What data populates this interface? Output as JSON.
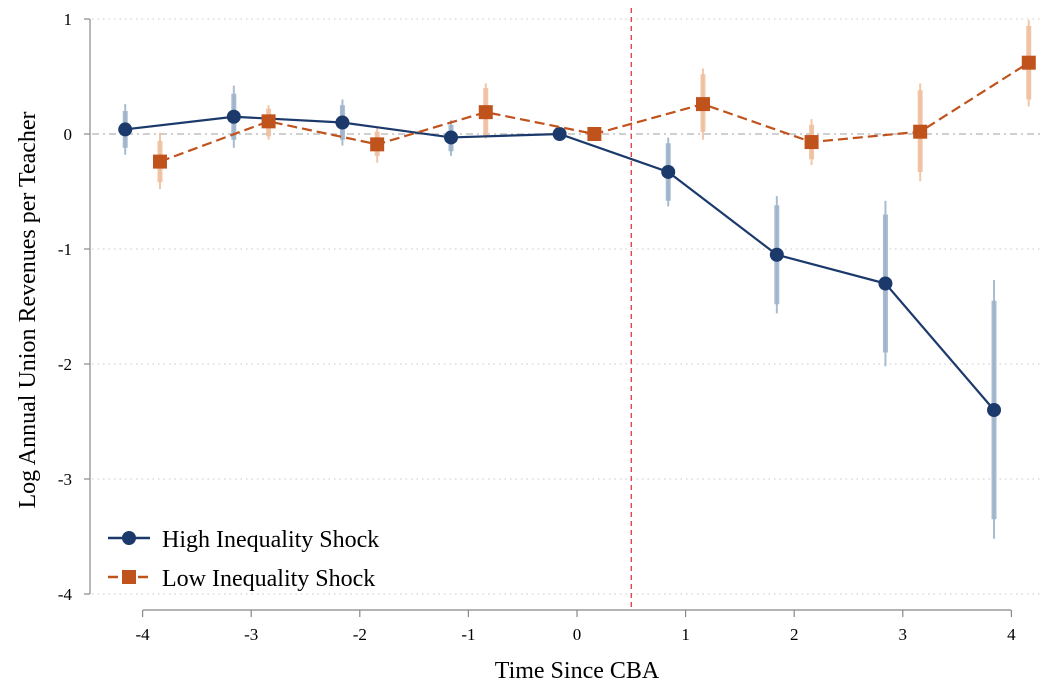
{
  "chart_data": {
    "type": "line",
    "xlabel": "Time Since CBA",
    "ylabel": "Log Annual Union Revenues per Teacher",
    "xlim": [
      -4.2,
      4.2
    ],
    "ylim": [
      -4,
      1
    ],
    "x_ticks": [
      -4,
      -3,
      -2,
      -1,
      0,
      1,
      2,
      3,
      4
    ],
    "y_ticks": [
      -4,
      -3,
      -2,
      -1,
      0,
      1
    ],
    "x_tick_labels": [
      "-4",
      "-3",
      "-2",
      "-1",
      "0",
      "1",
      "2",
      "3",
      "4"
    ],
    "y_tick_labels": [
      "-4",
      "-3",
      "-2",
      "-1",
      "0",
      "1"
    ],
    "grid": "horizontal dotted",
    "reference_lines": {
      "y": 0,
      "x": 0.5
    },
    "legend_position": "bottom-left",
    "series": [
      {
        "name": "High Inequality Shock",
        "color": "#1b3a6b",
        "ci_color": "#9fb4cc",
        "marker": "circle",
        "linestyle": "solid",
        "x": [
          -4.16,
          -3.16,
          -2.16,
          -1.16,
          -0.16,
          0.84,
          1.84,
          2.84,
          3.84
        ],
        "values": [
          0.04,
          0.15,
          0.1,
          -0.03,
          0.0,
          -0.33,
          -1.05,
          -1.3,
          -2.4
        ],
        "ci_inner": [
          [
            -0.12,
            0.2
          ],
          [
            -0.05,
            0.35
          ],
          [
            -0.05,
            0.25
          ],
          [
            -0.15,
            0.08
          ],
          [
            0.0,
            0.0
          ],
          [
            -0.58,
            -0.08
          ],
          [
            -1.48,
            -0.62
          ],
          [
            -1.9,
            -0.7
          ],
          [
            -3.35,
            -1.45
          ]
        ],
        "ci_outer": [
          [
            -0.18,
            0.26
          ],
          [
            -0.12,
            0.42
          ],
          [
            -0.1,
            0.3
          ],
          [
            -0.19,
            0.12
          ],
          [
            0.0,
            0.0
          ],
          [
            -0.63,
            -0.03
          ],
          [
            -1.56,
            -0.54
          ],
          [
            -2.02,
            -0.58
          ],
          [
            -3.52,
            -1.27
          ]
        ]
      },
      {
        "name": "Low Inequality Shock",
        "color": "#c0521c",
        "ci_color": "#f0c0a0",
        "marker": "square",
        "linestyle": "dashed",
        "x": [
          -3.84,
          -2.84,
          -1.84,
          -0.84,
          0.16,
          1.16,
          2.16,
          3.16,
          4.16
        ],
        "values": [
          -0.24,
          0.11,
          -0.09,
          0.19,
          0.0,
          0.26,
          -0.07,
          0.02,
          0.62
        ],
        "ci_inner": [
          [
            -0.42,
            -0.06
          ],
          [
            -0.02,
            0.22
          ],
          [
            -0.19,
            0.02
          ],
          [
            -0.02,
            0.4
          ],
          [
            0.0,
            0.0
          ],
          [
            0.02,
            0.52
          ],
          [
            -0.22,
            0.08
          ],
          [
            -0.33,
            0.38
          ],
          [
            0.3,
            0.94
          ]
        ],
        "ci_outer": [
          [
            -0.48,
            0.01
          ],
          [
            -0.05,
            0.25
          ],
          [
            -0.25,
            0.06
          ],
          [
            -0.04,
            0.44
          ],
          [
            0.0,
            0.0
          ],
          [
            -0.05,
            0.57
          ],
          [
            -0.27,
            0.13
          ],
          [
            -0.41,
            0.44
          ],
          [
            0.24,
            0.99
          ]
        ]
      }
    ]
  }
}
